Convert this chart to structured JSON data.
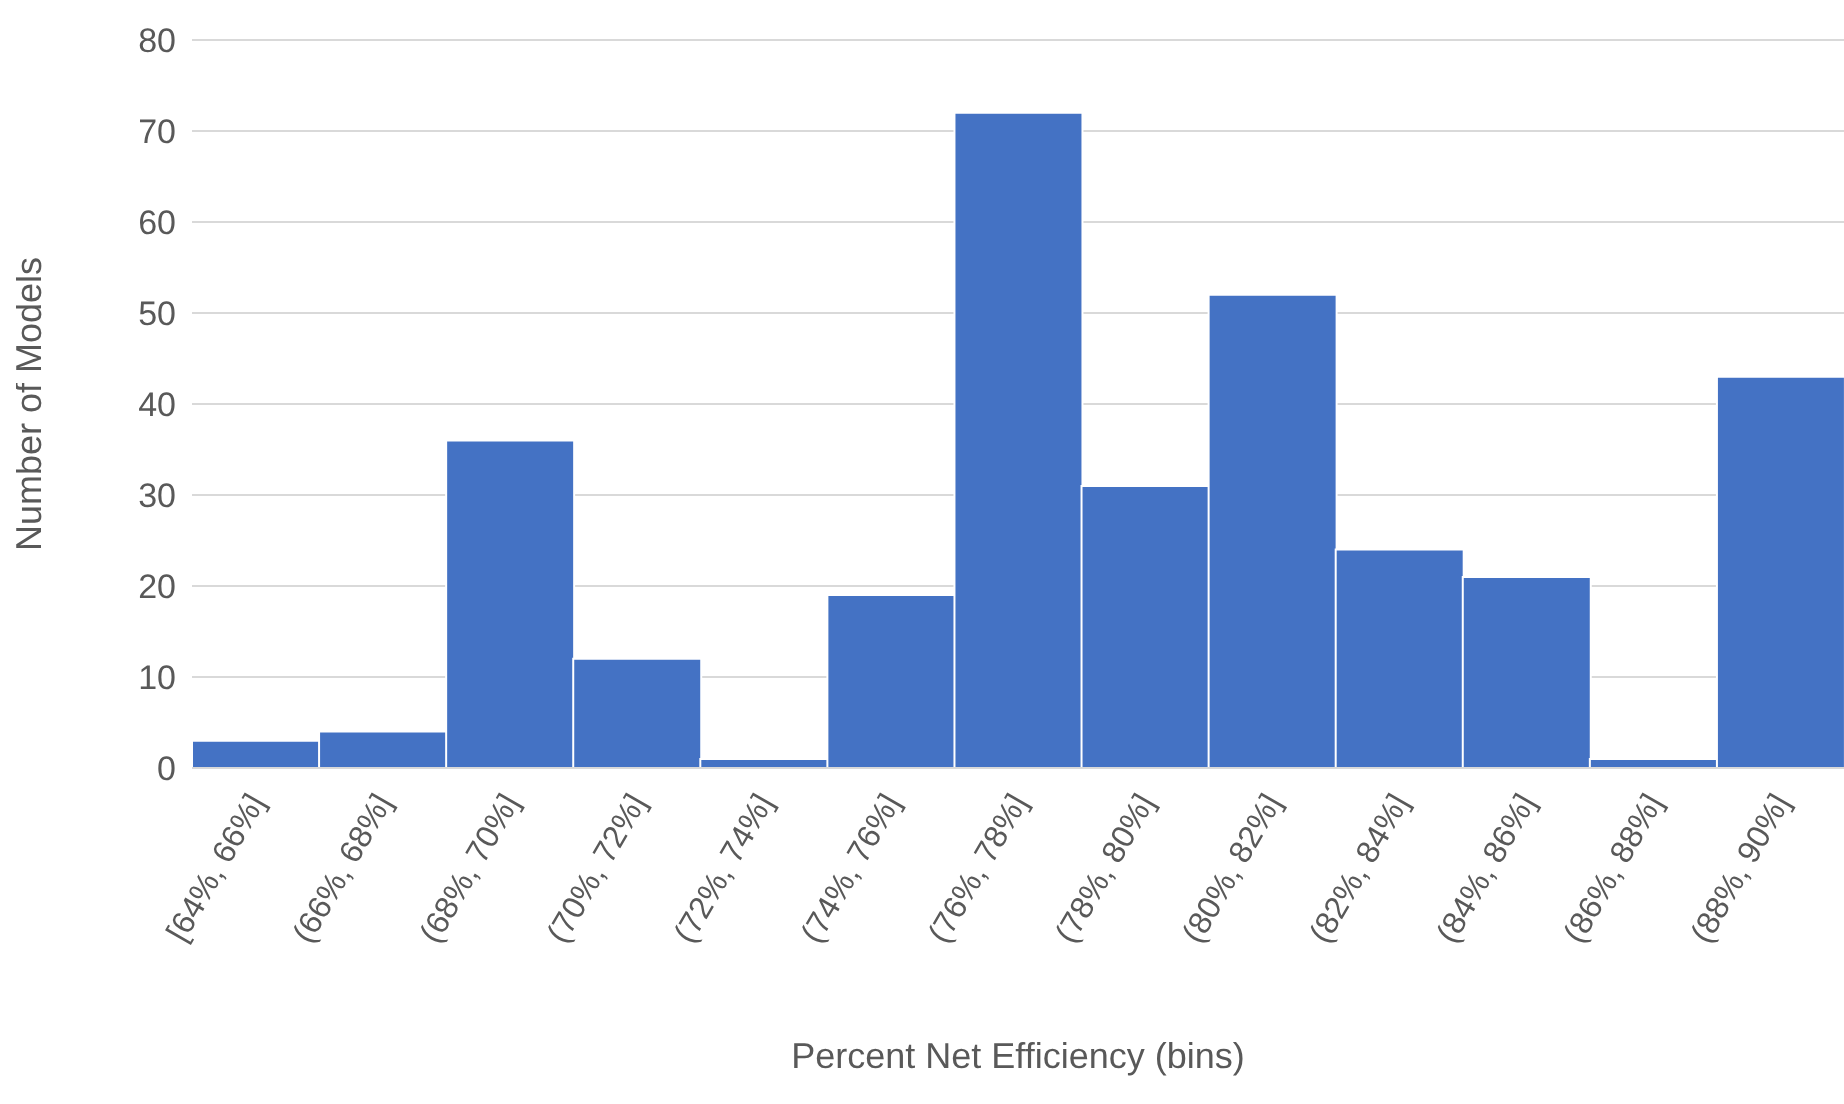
{
  "chart_data": {
    "type": "bar",
    "xlabel": "Percent Net Efficiency (bins)",
    "ylabel": "Number of Models",
    "categories": [
      "[64%, 66%]",
      "(66%, 68%]",
      "(68%, 70%]",
      "(70%, 72%]",
      "(72%, 74%]",
      "(74%, 76%]",
      "(76%, 78%]",
      "(78%, 80%]",
      "(80%, 82%]",
      "(82%, 84%]",
      "(84%, 86%]",
      "(86%, 88%]",
      "(88%, 90%]"
    ],
    "values": [
      3,
      4,
      36,
      12,
      1,
      19,
      72,
      31,
      52,
      24,
      21,
      1,
      43
    ],
    "color": "#4472c4",
    "ylim": [
      0,
      80
    ],
    "yticks": [
      0,
      10,
      20,
      30,
      40,
      50,
      60,
      70,
      80
    ],
    "grid": "y"
  }
}
